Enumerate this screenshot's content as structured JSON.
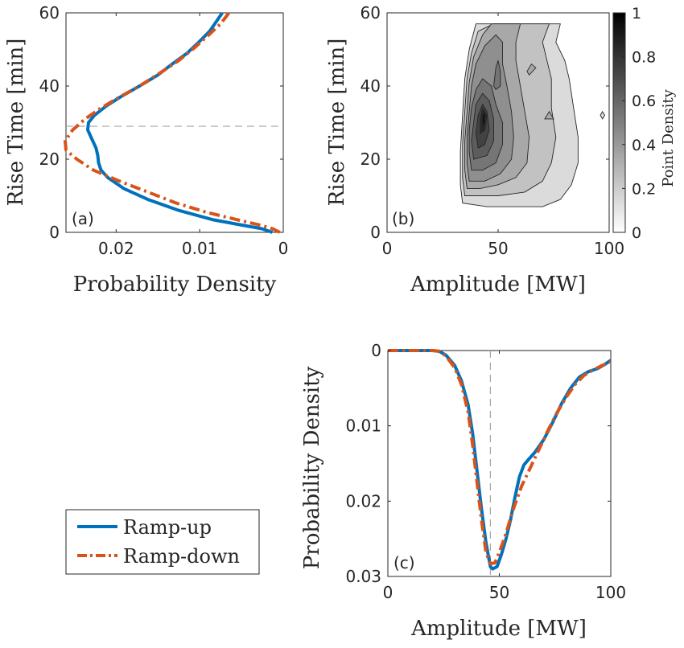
{
  "colors": {
    "ramp_up": "#0072BD",
    "ramp_down": "#D95319",
    "reference": "#a6a6a6",
    "axes": "#262626"
  },
  "legend": {
    "items": [
      "Ramp-up",
      "Ramp-down"
    ]
  },
  "chart_data": [
    {
      "id": "a",
      "type": "line",
      "panel_label": "(a)",
      "xlabel": "Probability Density",
      "ylabel": "Rise Time [min]",
      "xlim": [
        0.026,
        0
      ],
      "ylim": [
        0,
        60
      ],
      "xticks": [
        0.02,
        0.01,
        0
      ],
      "xtick_labels": [
        "0.02",
        "0.01",
        "0"
      ],
      "yticks": [
        0,
        20,
        40,
        60
      ],
      "ytick_labels": [
        "0",
        "20",
        "40",
        "60"
      ],
      "reference_line": {
        "orientation": "horizontal",
        "y": 29
      },
      "series": [
        {
          "name": "Ramp-up",
          "style": "solid",
          "points": [
            [
              0.0013,
              0
            ],
            [
              0.0026,
              1
            ],
            [
              0.005,
              2
            ],
            [
              0.0085,
              3.5
            ],
            [
              0.0125,
              6
            ],
            [
              0.0162,
              9
            ],
            [
              0.0191,
              12
            ],
            [
              0.021,
              15
            ],
            [
              0.0218,
              17
            ],
            [
              0.0221,
              19
            ],
            [
              0.0222,
              21
            ],
            [
              0.0224,
              23
            ],
            [
              0.0229,
              25.5
            ],
            [
              0.0234,
              28
            ],
            [
              0.0233,
              30
            ],
            [
              0.0226,
              32
            ],
            [
              0.0212,
              34.5
            ],
            [
              0.0195,
              37
            ],
            [
              0.0172,
              40
            ],
            [
              0.015,
              43
            ],
            [
              0.0133,
              46
            ],
            [
              0.0115,
              49
            ],
            [
              0.0101,
              52
            ],
            [
              0.0088,
              55
            ],
            [
              0.0079,
              58
            ],
            [
              0.0073,
              60
            ]
          ]
        },
        {
          "name": "Ramp-down",
          "style": "dashdot",
          "points": [
            [
              0.0004,
              0
            ],
            [
              0.0013,
              1
            ],
            [
              0.0028,
              2
            ],
            [
              0.0056,
              3.5
            ],
            [
              0.0092,
              5.5
            ],
            [
              0.0128,
              8
            ],
            [
              0.0162,
              11
            ],
            [
              0.0196,
              14
            ],
            [
              0.0227,
              17
            ],
            [
              0.0247,
              20
            ],
            [
              0.026,
              22.5
            ],
            [
              0.0261,
              25
            ],
            [
              0.0252,
              28
            ],
            [
              0.0237,
              31
            ],
            [
              0.0218,
              34
            ],
            [
              0.0196,
              37
            ],
            [
              0.0172,
              40
            ],
            [
              0.0148,
              43.5
            ],
            [
              0.0125,
              47
            ],
            [
              0.0106,
              50.5
            ],
            [
              0.0089,
              54
            ],
            [
              0.0075,
              57
            ],
            [
              0.0065,
              60
            ]
          ]
        }
      ]
    },
    {
      "id": "b",
      "type": "heatmap",
      "panel_label": "(b)",
      "xlabel": "Amplitude [MW]",
      "ylabel": "Rise Time [min]",
      "xlim": [
        0,
        100
      ],
      "ylim": [
        0,
        60
      ],
      "xticks": [
        0,
        50,
        100
      ],
      "xtick_labels": [
        "0",
        "50",
        "100"
      ],
      "yticks": [
        0,
        20,
        40,
        60
      ],
      "ytick_labels": [
        "0",
        "20",
        "40",
        "60"
      ],
      "colorbar": {
        "label": "Point Density",
        "range": [
          0,
          1
        ],
        "ticks": [
          0,
          0.2,
          0.4,
          0.6,
          0.8,
          1
        ],
        "tick_labels": [
          "0",
          "0.2",
          "0.4",
          "0.6",
          "0.8",
          "1"
        ]
      },
      "contours": [
        {
          "level": 0.1,
          "points": [
            [
              34,
              8
            ],
            [
              33,
              13
            ],
            [
              33,
              22
            ],
            [
              34,
              32
            ],
            [
              35,
              42
            ],
            [
              37,
              50
            ],
            [
              40,
              57
            ],
            [
              52,
              57
            ],
            [
              63,
              57
            ],
            [
              72,
              57
            ],
            [
              78,
              57
            ],
            [
              76,
              52
            ],
            [
              80,
              47
            ],
            [
              82,
              42
            ],
            [
              84,
              34
            ],
            [
              86,
              26
            ],
            [
              86,
              19
            ],
            [
              83,
              13
            ],
            [
              78,
              9
            ],
            [
              70,
              7
            ],
            [
              55,
              7
            ],
            [
              45,
              7
            ]
          ]
        },
        {
          "level": 0.2,
          "points": [
            [
              35,
              10
            ],
            [
              34,
              15
            ],
            [
              34,
              24
            ],
            [
              35,
              33
            ],
            [
              36,
              42
            ],
            [
              38,
              49
            ],
            [
              41,
              55
            ],
            [
              48,
              57
            ],
            [
              57,
              57
            ],
            [
              68,
              57
            ],
            [
              73,
              57
            ],
            [
              70,
              52
            ],
            [
              72,
              47
            ],
            [
              74,
              42
            ],
            [
              74,
              34
            ],
            [
              76,
              26
            ],
            [
              74,
              19
            ],
            [
              70,
              14
            ],
            [
              62,
              11
            ],
            [
              50,
              10
            ],
            [
              42,
              10
            ]
          ]
        },
        {
          "level": 0.3,
          "points": [
            [
              36,
              12
            ],
            [
              35,
              17
            ],
            [
              35,
              25
            ],
            [
              36,
              33
            ],
            [
              37,
              41
            ],
            [
              39,
              48
            ],
            [
              43,
              54
            ],
            [
              47,
              57
            ],
            [
              54,
              57
            ],
            [
              60,
              57
            ],
            [
              58,
              52
            ],
            [
              58,
              47
            ],
            [
              60,
              40
            ],
            [
              62,
              33
            ],
            [
              64,
              26
            ],
            [
              63,
              19
            ],
            [
              58,
              15
            ],
            [
              50,
              13
            ],
            [
              42,
              12
            ]
          ]
        },
        {
          "level": 0.4,
          "points": [
            [
              37,
              14
            ],
            [
              36,
              19
            ],
            [
              36,
              26
            ],
            [
              37,
              33
            ],
            [
              38,
              40
            ],
            [
              40,
              46
            ],
            [
              44,
              51
            ],
            [
              49,
              54
            ],
            [
              52,
              52
            ],
            [
              52,
              46
            ],
            [
              54,
              40
            ],
            [
              56,
              33
            ],
            [
              57,
              26
            ],
            [
              56,
              20
            ],
            [
              51,
              16
            ],
            [
              44,
              14
            ]
          ]
        },
        {
          "level": 0.5,
          "points": [
            [
              38,
              17
            ],
            [
              37,
              22
            ],
            [
              37,
              28
            ],
            [
              38,
              34
            ],
            [
              40,
              39
            ],
            [
              43,
              42
            ],
            [
              47,
              40
            ],
            [
              49,
              35
            ],
            [
              52,
              30
            ],
            [
              52,
              24
            ],
            [
              49,
              19
            ],
            [
              43,
              17
            ]
          ]
        },
        {
          "level": 0.6,
          "points": [
            [
              39,
              20
            ],
            [
              38,
              25
            ],
            [
              39,
              30
            ],
            [
              40,
              35
            ],
            [
              43,
              38
            ],
            [
              46,
              36
            ],
            [
              48,
              31
            ],
            [
              48,
              25
            ],
            [
              45,
              21
            ]
          ]
        },
        {
          "level": 0.7,
          "points": [
            [
              41,
              23
            ],
            [
              40,
              27
            ],
            [
              41,
              32
            ],
            [
              43,
              35
            ],
            [
              45,
              33
            ],
            [
              46,
              28
            ],
            [
              44,
              24
            ]
          ]
        },
        {
          "level": 0.8,
          "points": [
            [
              42,
              27
            ],
            [
              42,
              31
            ],
            [
              43,
              34
            ],
            [
              45,
              32
            ],
            [
              44,
              28
            ]
          ]
        },
        {
          "level": 0.9,
          "points": [
            [
              43,
              29
            ],
            [
              43,
              32
            ],
            [
              44,
              33
            ],
            [
              44,
              30
            ]
          ]
        },
        {
          "level": 0.5,
          "points": [
            [
              48,
              40
            ],
            [
              49,
              45
            ],
            [
              50,
              47
            ],
            [
              51,
              44
            ],
            [
              51,
              40
            ],
            [
              49,
              39
            ]
          ]
        },
        {
          "level": 0.3,
          "points": [
            [
              63,
              44
            ],
            [
              65,
              46
            ],
            [
              67,
              45
            ],
            [
              64,
              43
            ]
          ]
        },
        {
          "level": 0.3,
          "points": [
            [
              71,
              31
            ],
            [
              73,
              33
            ],
            [
              75,
              31
            ]
          ]
        },
        {
          "level": 0.1,
          "points": [
            [
              96,
              32
            ],
            [
              97,
              33
            ],
            [
              98,
              32
            ],
            [
              97,
              31
            ]
          ]
        }
      ]
    },
    {
      "id": "c",
      "type": "line",
      "panel_label": "(c)",
      "xlabel": "Amplitude [MW]",
      "ylabel": "Probability Density",
      "xlim": [
        0,
        100
      ],
      "ylim": [
        0.03,
        0
      ],
      "xticks": [
        0,
        50,
        100
      ],
      "xtick_labels": [
        "0",
        "50",
        "100"
      ],
      "yticks": [
        0,
        0.01,
        0.02,
        0.03
      ],
      "ytick_labels": [
        "0",
        "0.01",
        "0.02",
        "0.03"
      ],
      "reference_line": {
        "orientation": "vertical",
        "x": 46
      },
      "series": [
        {
          "name": "Ramp-up",
          "style": "solid",
          "points": [
            [
              0,
              0
            ],
            [
              10,
              0
            ],
            [
              20,
              0
            ],
            [
              23,
              0.0001
            ],
            [
              26,
              0.0006
            ],
            [
              30,
              0.002
            ],
            [
              33,
              0.004
            ],
            [
              36,
              0.0072
            ],
            [
              38,
              0.011
            ],
            [
              40,
              0.016
            ],
            [
              42,
              0.021
            ],
            [
              44,
              0.0255
            ],
            [
              46,
              0.0287
            ],
            [
              47,
              0.029
            ],
            [
              49,
              0.0287
            ],
            [
              51,
              0.027
            ],
            [
              53,
              0.025
            ],
            [
              55,
              0.0225
            ],
            [
              57,
              0.0195
            ],
            [
              59,
              0.0168
            ],
            [
              61,
              0.0152
            ],
            [
              63,
              0.0145
            ],
            [
              66,
              0.0135
            ],
            [
              70,
              0.0118
            ],
            [
              74,
              0.0095
            ],
            [
              78,
              0.007
            ],
            [
              82,
              0.005
            ],
            [
              86,
              0.0035
            ],
            [
              90,
              0.0028
            ],
            [
              94,
              0.0024
            ],
            [
              97,
              0.0019
            ],
            [
              100,
              0.0013
            ]
          ]
        },
        {
          "name": "Ramp-down",
          "style": "dashdot",
          "points": [
            [
              0,
              0
            ],
            [
              10,
              0
            ],
            [
              20,
              0
            ],
            [
              23,
              0.0001
            ],
            [
              26,
              0.0007
            ],
            [
              30,
              0.0023
            ],
            [
              33,
              0.0045
            ],
            [
              36,
              0.0082
            ],
            [
              38,
              0.0125
            ],
            [
              40,
              0.0175
            ],
            [
              42,
              0.0225
            ],
            [
              44,
              0.0268
            ],
            [
              46,
              0.0283
            ],
            [
              48,
              0.0282
            ],
            [
              50,
              0.0268
            ],
            [
              53,
              0.0243
            ],
            [
              56,
              0.0213
            ],
            [
              60,
              0.018
            ],
            [
              64,
              0.0155
            ],
            [
              68,
              0.013
            ],
            [
              72,
              0.0105
            ],
            [
              76,
              0.0082
            ],
            [
              80,
              0.0062
            ],
            [
              84,
              0.0045
            ],
            [
              88,
              0.0033
            ],
            [
              92,
              0.0026
            ],
            [
              96,
              0.002
            ],
            [
              100,
              0.0015
            ]
          ]
        }
      ]
    }
  ]
}
